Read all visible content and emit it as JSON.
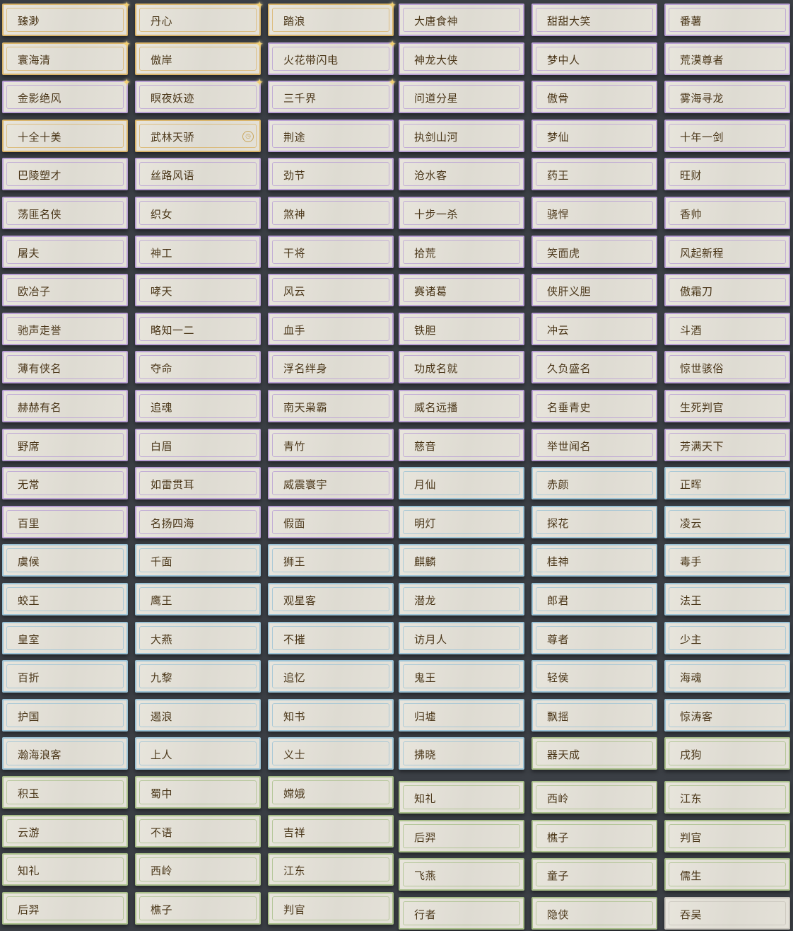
{
  "tier_colors": {
    "gold": "#d9b46a",
    "purple": "#b9a0d4",
    "blue": "#9cc3d6",
    "green": "#a9bf8a",
    "white": "#c8c4bc"
  },
  "left_block": [
    [
      {
        "name": "臻渺",
        "tier": "gold",
        "star": true
      },
      {
        "name": "丹心",
        "tier": "gold",
        "star": true
      },
      {
        "name": "踏浪",
        "tier": "gold",
        "star": true
      }
    ],
    [
      {
        "name": "寰海清",
        "tier": "gold",
        "star": true
      },
      {
        "name": "傲岸",
        "tier": "gold",
        "star": true
      },
      {
        "name": "火花带闪电",
        "tier": "purple",
        "star": true
      }
    ],
    [
      {
        "name": "金影绝风",
        "tier": "purple",
        "star": true
      },
      {
        "name": "瞑夜妖迹",
        "tier": "purple",
        "star": true
      },
      {
        "name": "三千界",
        "tier": "purple",
        "star": true
      }
    ],
    [
      {
        "name": "十全十美",
        "tier": "gold"
      },
      {
        "name": "武林天骄",
        "tier": "gold",
        "badge": "clock-icon"
      },
      {
        "name": "荆途",
        "tier": "purple"
      }
    ],
    [
      {
        "name": "巴陵塑才",
        "tier": "purple"
      },
      {
        "name": "丝路风语",
        "tier": "purple"
      },
      {
        "name": "劲节",
        "tier": "purple"
      }
    ],
    [
      {
        "name": "荡匪名侠",
        "tier": "purple"
      },
      {
        "name": "织女",
        "tier": "purple"
      },
      {
        "name": "煞神",
        "tier": "purple"
      }
    ],
    [
      {
        "name": "屠夫",
        "tier": "purple"
      },
      {
        "name": "神工",
        "tier": "purple"
      },
      {
        "name": "干将",
        "tier": "purple"
      }
    ],
    [
      {
        "name": "欧冶子",
        "tier": "purple"
      },
      {
        "name": "哮天",
        "tier": "purple"
      },
      {
        "name": "风云",
        "tier": "purple"
      }
    ],
    [
      {
        "name": "驰声走誉",
        "tier": "purple"
      },
      {
        "name": "略知一二",
        "tier": "purple"
      },
      {
        "name": "血手",
        "tier": "purple"
      }
    ],
    [
      {
        "name": "薄有侠名",
        "tier": "purple"
      },
      {
        "name": "夺命",
        "tier": "purple"
      },
      {
        "name": "浮名绊身",
        "tier": "purple"
      }
    ],
    [
      {
        "name": "赫赫有名",
        "tier": "purple"
      },
      {
        "name": "追魂",
        "tier": "purple"
      },
      {
        "name": "南天枭霸",
        "tier": "purple"
      }
    ],
    [
      {
        "name": "野席",
        "tier": "purple"
      },
      {
        "name": "白眉",
        "tier": "purple"
      },
      {
        "name": "青竹",
        "tier": "purple"
      }
    ],
    [
      {
        "name": "无常",
        "tier": "purple"
      },
      {
        "name": "如雷贯耳",
        "tier": "purple"
      },
      {
        "name": "威震寰宇",
        "tier": "purple"
      }
    ],
    [
      {
        "name": "百里",
        "tier": "purple"
      },
      {
        "name": "名扬四海",
        "tier": "purple"
      },
      {
        "name": "假面",
        "tier": "purple"
      }
    ],
    [
      {
        "name": "虞候",
        "tier": "blue"
      },
      {
        "name": "千面",
        "tier": "blue"
      },
      {
        "name": "狮王",
        "tier": "blue"
      }
    ],
    [
      {
        "name": "蛟王",
        "tier": "blue"
      },
      {
        "name": "鹰王",
        "tier": "blue"
      },
      {
        "name": "观星客",
        "tier": "blue"
      }
    ],
    [
      {
        "name": "皇室",
        "tier": "blue"
      },
      {
        "name": "大燕",
        "tier": "blue"
      },
      {
        "name": "不摧",
        "tier": "blue"
      }
    ],
    [
      {
        "name": "百折",
        "tier": "blue"
      },
      {
        "name": "九黎",
        "tier": "blue"
      },
      {
        "name": "追忆",
        "tier": "blue"
      }
    ],
    [
      {
        "name": "护国",
        "tier": "blue"
      },
      {
        "name": "遏浪",
        "tier": "blue"
      },
      {
        "name": "知书",
        "tier": "blue"
      }
    ],
    [
      {
        "name": "瀚海浪客",
        "tier": "blue"
      },
      {
        "name": "上人",
        "tier": "blue"
      },
      {
        "name": "义士",
        "tier": "blue"
      }
    ],
    [
      {
        "name": "积玉",
        "tier": "green"
      },
      {
        "name": "蜀中",
        "tier": "green"
      },
      {
        "name": "嫦娥",
        "tier": "green"
      }
    ],
    [
      {
        "name": "云游",
        "tier": "green"
      },
      {
        "name": "不语",
        "tier": "green"
      },
      {
        "name": "吉祥",
        "tier": "green"
      }
    ],
    [
      {
        "name": "知礼",
        "tier": "green"
      },
      {
        "name": "西岭",
        "tier": "green"
      },
      {
        "name": "江东",
        "tier": "green"
      }
    ],
    [
      {
        "name": "后羿",
        "tier": "green"
      },
      {
        "name": "樵子",
        "tier": "green"
      },
      {
        "name": "判官",
        "tier": "green"
      }
    ]
  ],
  "right_block": [
    [
      {
        "name": "大唐食神",
        "tier": "purple"
      },
      {
        "name": "甜甜大笑",
        "tier": "purple"
      },
      {
        "name": "番薯",
        "tier": "purple"
      }
    ],
    [
      {
        "name": "神龙大侠",
        "tier": "purple"
      },
      {
        "name": "梦中人",
        "tier": "purple"
      },
      {
        "name": "荒漠尊者",
        "tier": "purple"
      }
    ],
    [
      {
        "name": "问道分星",
        "tier": "purple"
      },
      {
        "name": "傲骨",
        "tier": "purple"
      },
      {
        "name": "雾海寻龙",
        "tier": "purple"
      }
    ],
    [
      {
        "name": "执剑山河",
        "tier": "purple"
      },
      {
        "name": "梦仙",
        "tier": "purple"
      },
      {
        "name": "十年一剑",
        "tier": "purple"
      }
    ],
    [
      {
        "name": "沧水客",
        "tier": "purple"
      },
      {
        "name": "药王",
        "tier": "purple"
      },
      {
        "name": "旺财",
        "tier": "purple"
      }
    ],
    [
      {
        "name": "十步一杀",
        "tier": "purple"
      },
      {
        "name": "骁悍",
        "tier": "purple"
      },
      {
        "name": "香帅",
        "tier": "purple"
      }
    ],
    [
      {
        "name": "拾荒",
        "tier": "purple"
      },
      {
        "name": "笑面虎",
        "tier": "purple"
      },
      {
        "name": "风起新程",
        "tier": "purple"
      }
    ],
    [
      {
        "name": "赛诸葛",
        "tier": "purple"
      },
      {
        "name": "侠肝义胆",
        "tier": "purple"
      },
      {
        "name": "傲霜刀",
        "tier": "purple"
      }
    ],
    [
      {
        "name": "铁胆",
        "tier": "purple"
      },
      {
        "name": "冲云",
        "tier": "purple"
      },
      {
        "name": "斗酒",
        "tier": "purple"
      }
    ],
    [
      {
        "name": "功成名就",
        "tier": "purple"
      },
      {
        "name": "久负盛名",
        "tier": "purple"
      },
      {
        "name": "惊世骇俗",
        "tier": "purple"
      }
    ],
    [
      {
        "name": "威名远播",
        "tier": "purple"
      },
      {
        "name": "名垂青史",
        "tier": "purple"
      },
      {
        "name": "生死判官",
        "tier": "purple"
      }
    ],
    [
      {
        "name": "慈音",
        "tier": "purple"
      },
      {
        "name": "举世闻名",
        "tier": "purple"
      },
      {
        "name": "芳满天下",
        "tier": "purple"
      }
    ],
    [
      {
        "name": "月仙",
        "tier": "blue"
      },
      {
        "name": "赤颜",
        "tier": "blue"
      },
      {
        "name": "正晖",
        "tier": "blue"
      }
    ],
    [
      {
        "name": "明灯",
        "tier": "blue"
      },
      {
        "name": "探花",
        "tier": "blue"
      },
      {
        "name": "凌云",
        "tier": "blue"
      }
    ],
    [
      {
        "name": "麒麟",
        "tier": "blue"
      },
      {
        "name": "桂神",
        "tier": "blue"
      },
      {
        "name": "毒手",
        "tier": "blue"
      }
    ],
    [
      {
        "name": "潜龙",
        "tier": "blue"
      },
      {
        "name": "郎君",
        "tier": "blue"
      },
      {
        "name": "法王",
        "tier": "blue"
      }
    ],
    [
      {
        "name": "访月人",
        "tier": "blue"
      },
      {
        "name": "尊者",
        "tier": "blue"
      },
      {
        "name": "少主",
        "tier": "blue"
      }
    ],
    [
      {
        "name": "鬼王",
        "tier": "blue"
      },
      {
        "name": "轻侯",
        "tier": "blue"
      },
      {
        "name": "海魂",
        "tier": "blue"
      }
    ],
    [
      {
        "name": "归墟",
        "tier": "blue"
      },
      {
        "name": "飘摇",
        "tier": "blue"
      },
      {
        "name": "惊涛客",
        "tier": "blue"
      }
    ],
    [
      {
        "name": "拂晓",
        "tier": "blue"
      },
      {
        "name": "器天成",
        "tier": "green"
      },
      {
        "name": "戌狗",
        "tier": "green"
      }
    ],
    [
      {
        "name": "知礼",
        "tier": "green"
      },
      {
        "name": "西岭",
        "tier": "green"
      },
      {
        "name": "江东",
        "tier": "green"
      }
    ],
    [
      {
        "name": "后羿",
        "tier": "green"
      },
      {
        "name": "樵子",
        "tier": "green"
      },
      {
        "name": "判官",
        "tier": "green"
      }
    ],
    [
      {
        "name": "飞燕",
        "tier": "green"
      },
      {
        "name": "童子",
        "tier": "green"
      },
      {
        "name": "儒生",
        "tier": "green"
      }
    ],
    [
      {
        "name": "行者",
        "tier": "green"
      },
      {
        "name": "隐侠",
        "tier": "green"
      },
      {
        "name": "吞吴",
        "tier": "white"
      }
    ]
  ]
}
